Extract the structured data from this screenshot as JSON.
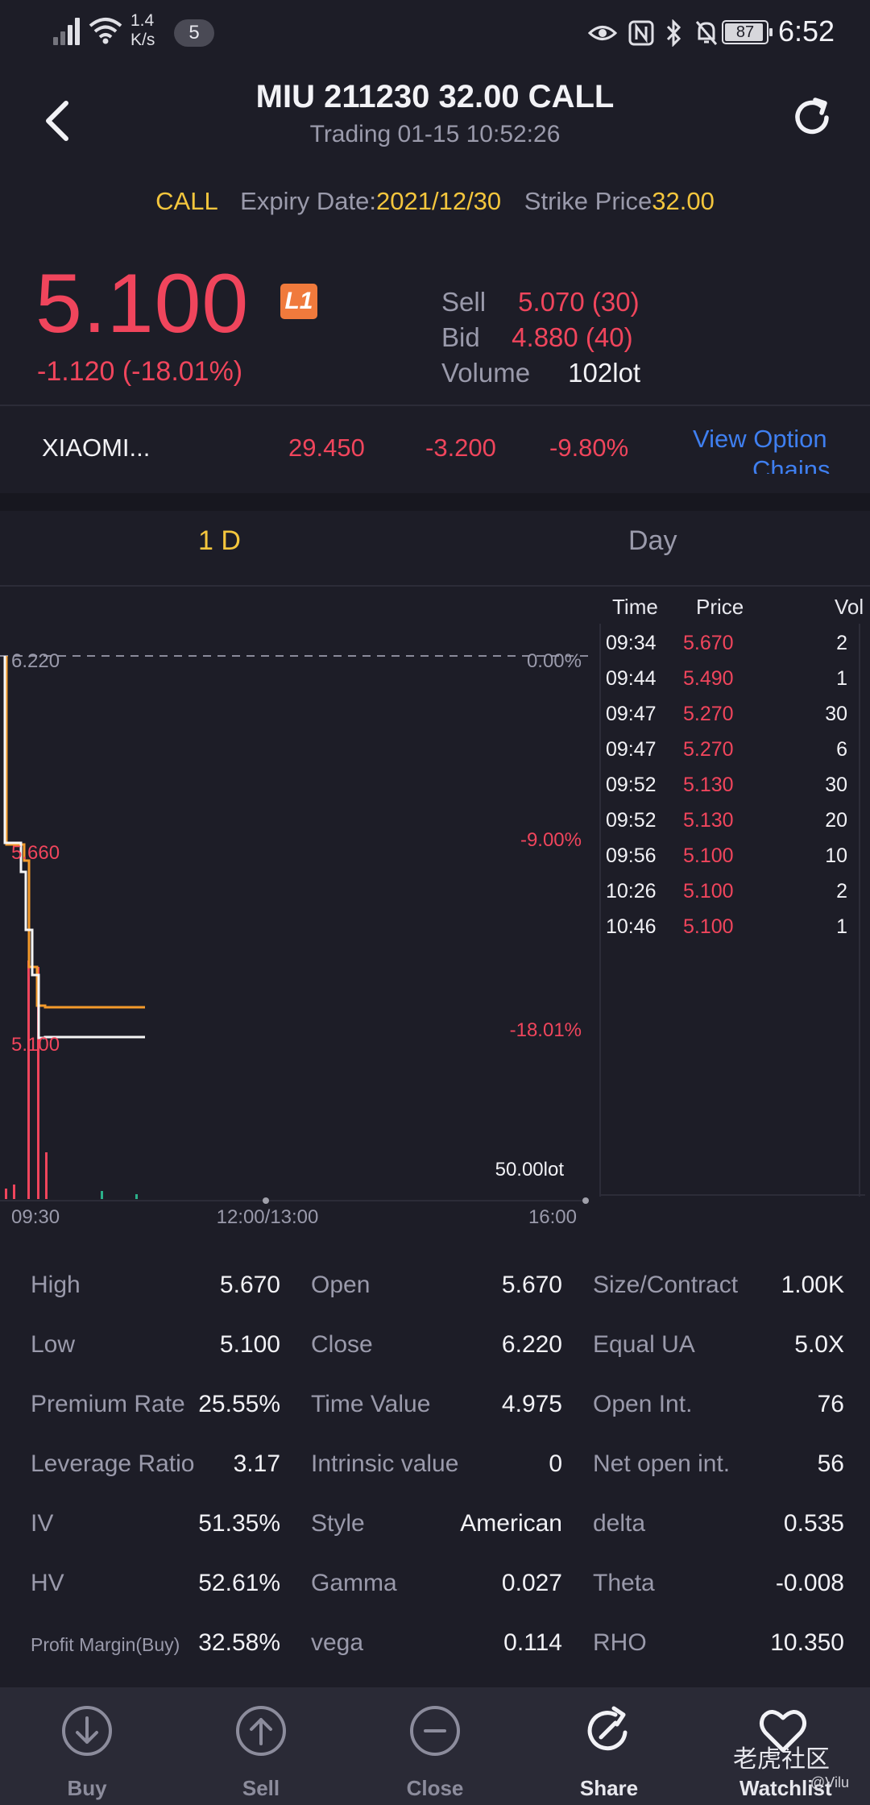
{
  "status_bar": {
    "net_speed_top": "1.4",
    "net_speed_bottom": "K/s",
    "notification_count": "5",
    "battery": "87",
    "time": "6:52"
  },
  "header": {
    "title": "MIU 211230 32.00 CALL",
    "subtitle": "Trading 01-15 10:52:26"
  },
  "contract": {
    "type": "CALL",
    "expiry_label": "Expiry Date:",
    "expiry_value": "2021/12/30",
    "strike_label": "Strike Price",
    "strike_value": "32.00"
  },
  "price": {
    "last": "5.100",
    "badge": "L1",
    "change": "-1.120 (-18.01%)",
    "sell_label": "Sell",
    "sell_value": "5.070 (30)",
    "bid_label": "Bid",
    "bid_value": "4.880 (40)",
    "volume_label": "Volume",
    "volume_value": "102lot"
  },
  "underlying": {
    "name": "XIAOMI...",
    "price": "29.450",
    "change": "-3.200",
    "change_pct": "-9.80%",
    "link_line1": "View Option",
    "link_line2": "Chains"
  },
  "tabs": [
    {
      "label": "1 D"
    },
    {
      "label": "Day"
    }
  ],
  "chart": {
    "price_levels": [
      "6.220",
      "5.660",
      "5.100"
    ],
    "pct_levels": [
      "0.00%",
      "-9.00%",
      "-18.01%"
    ],
    "volume_label": "50.00lot",
    "x_labels": [
      "09:30",
      "12:00/13:00",
      "16:00"
    ]
  },
  "chart_data": {
    "type": "line",
    "ylim": [
      5.1,
      6.22
    ],
    "series": [],
    "x": [
      "09:30",
      "09:34",
      "09:44",
      "09:47",
      "09:52",
      "09:56",
      "10:26",
      "10:46"
    ],
    "values": [
      6.22,
      5.67,
      5.49,
      5.27,
      5.13,
      5.1,
      5.1,
      5.1
    ]
  },
  "trades": {
    "headers": {
      "time": "Time",
      "price": "Price",
      "vol": "Vol"
    },
    "rows": [
      {
        "time": "09:34",
        "price": "5.670",
        "vol": "2"
      },
      {
        "time": "09:44",
        "price": "5.490",
        "vol": "1"
      },
      {
        "time": "09:47",
        "price": "5.270",
        "vol": "30"
      },
      {
        "time": "09:47",
        "price": "5.270",
        "vol": "6"
      },
      {
        "time": "09:52",
        "price": "5.130",
        "vol": "30"
      },
      {
        "time": "09:52",
        "price": "5.130",
        "vol": "20"
      },
      {
        "time": "09:56",
        "price": "5.100",
        "vol": "10"
      },
      {
        "time": "10:26",
        "price": "5.100",
        "vol": "2"
      },
      {
        "time": "10:46",
        "price": "5.100",
        "vol": "1"
      }
    ]
  },
  "stats": [
    [
      {
        "k": "High",
        "v": "5.670"
      },
      {
        "k": "Open",
        "v": "5.670"
      },
      {
        "k": "Size/Contract",
        "v": "1.00K"
      }
    ],
    [
      {
        "k": "Low",
        "v": "5.100"
      },
      {
        "k": "Close",
        "v": "6.220"
      },
      {
        "k": "Equal UA",
        "v": "5.0X"
      }
    ],
    [
      {
        "k": "Premium Rate",
        "v": "25.55%"
      },
      {
        "k": "Time Value",
        "v": "4.975"
      },
      {
        "k": "Open Int.",
        "v": "76"
      }
    ],
    [
      {
        "k": "Leverage Ratio",
        "v": "3.17"
      },
      {
        "k": "Intrinsic value",
        "v": "0"
      },
      {
        "k": "Net open int.",
        "v": "56"
      }
    ],
    [
      {
        "k": "IV",
        "v": "51.35%"
      },
      {
        "k": "Style",
        "v": "American"
      },
      {
        "k": "delta",
        "v": "0.535"
      }
    ],
    [
      {
        "k": "HV",
        "v": "52.61%"
      },
      {
        "k": "Gamma",
        "v": "0.027"
      },
      {
        "k": "Theta",
        "v": "-0.008"
      }
    ],
    [
      {
        "k": "Profit Margin(Buy)",
        "v": "32.58%"
      },
      {
        "k": "vega",
        "v": "0.114"
      },
      {
        "k": "RHO",
        "v": "10.350"
      }
    ]
  ],
  "bottom_nav": [
    {
      "label": "Buy",
      "icon": "arrow-down-circle-icon"
    },
    {
      "label": "Sell",
      "icon": "arrow-up-circle-icon"
    },
    {
      "label": "Close",
      "icon": "minus-circle-icon"
    },
    {
      "label": "Share",
      "icon": "share-icon"
    },
    {
      "label": "Watchlist",
      "icon": "heart-icon"
    }
  ],
  "watermark": {
    "text": "老虎社区",
    "user": "@Vilu"
  }
}
